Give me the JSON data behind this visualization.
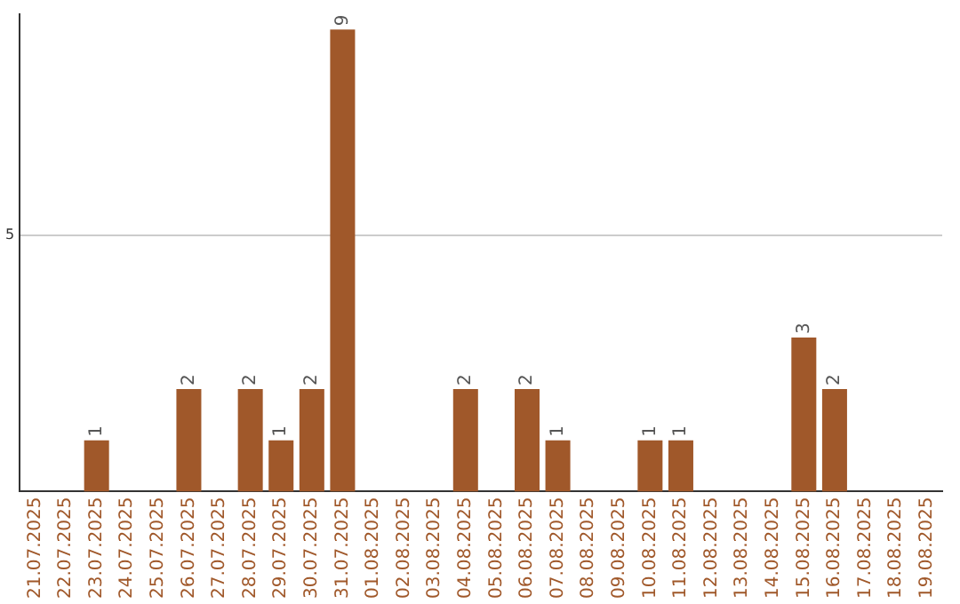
{
  "chart_data": {
    "type": "bar",
    "categories": [
      "21.07.2025",
      "22.07.2025",
      "23.07.2025",
      "24.07.2025",
      "25.07.2025",
      "26.07.2025",
      "27.07.2025",
      "28.07.2025",
      "29.07.2025",
      "30.07.2025",
      "31.07.2025",
      "01.08.2025",
      "02.08.2025",
      "03.08.2025",
      "04.08.2025",
      "05.08.2025",
      "06.08.2025",
      "07.08.2025",
      "08.08.2025",
      "09.08.2025",
      "10.08.2025",
      "11.08.2025",
      "12.08.2025",
      "13.08.2025",
      "14.08.2025",
      "15.08.2025",
      "16.08.2025",
      "17.08.2025",
      "18.08.2025",
      "19.08.2025"
    ],
    "values": [
      0,
      0,
      1,
      0,
      0,
      2,
      0,
      2,
      1,
      2,
      9,
      0,
      0,
      0,
      2,
      0,
      2,
      1,
      0,
      0,
      1,
      1,
      0,
      0,
      0,
      3,
      2,
      0,
      0,
      0
    ],
    "value_labels": [
      null,
      null,
      "1",
      null,
      null,
      "2",
      null,
      "2",
      "1",
      "2",
      "9",
      null,
      null,
      null,
      "2",
      null,
      "2",
      "1",
      null,
      null,
      "1",
      "1",
      null,
      null,
      null,
      "3",
      "2",
      null,
      null,
      null
    ],
    "color": "#a0582a",
    "ylim": [
      0,
      9.3
    ],
    "yticks": [
      5
    ],
    "grid": "y",
    "legend": false
  }
}
